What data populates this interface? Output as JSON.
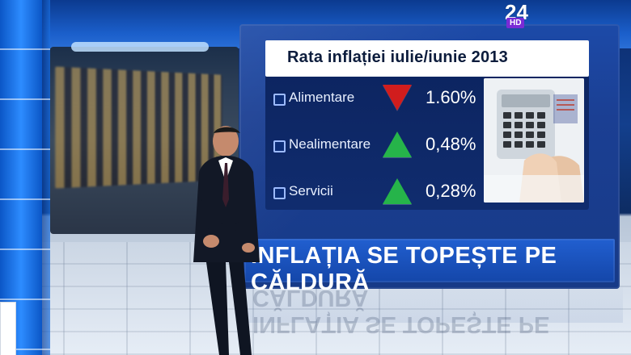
{
  "graphic": {
    "title": "Rata inflației iulie/iunie 2013",
    "rows": [
      {
        "label": "Alimentare",
        "trend": "down",
        "value": "1.60%"
      },
      {
        "label": "Nealimentare",
        "trend": "up",
        "value": "0,48%"
      },
      {
        "label": "Servicii",
        "trend": "up",
        "value": "0,28%"
      }
    ],
    "banner": "INFLAȚIA SE TOPEȘTE PE CĂLDURĂ"
  },
  "channel_logo": {
    "number": "24",
    "badge": "HD"
  },
  "icons": {
    "down_trend": "down-triangle-icon",
    "up_trend": "up-triangle-icon",
    "checkbox": "checkbox-icon"
  },
  "colors": {
    "down": "#d11d1d",
    "up": "#26b44a",
    "panel": "#1b3f93",
    "banner": "#1446a9"
  }
}
